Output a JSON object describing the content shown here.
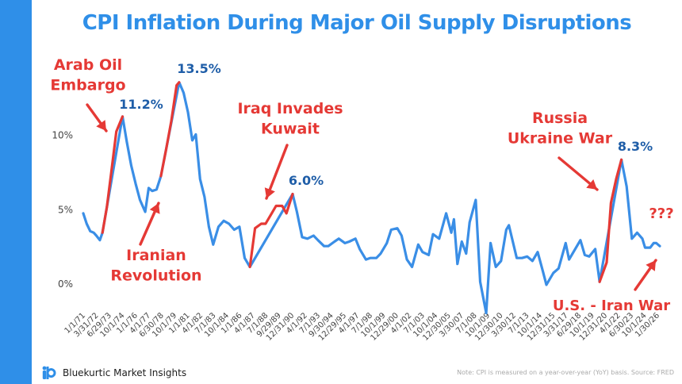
{
  "title": "CPI Inflation During Major Oil Supply Disruptions",
  "brand": {
    "name": "Bluekurtic Market Insights",
    "logo_icon": "bi-logo-icon"
  },
  "footnote": "Note: CPI is measured on a year-over-year (YoY) basis. Source: FRED",
  "colors": {
    "accent": "#2f8fe8",
    "line_blue": "#3a8ee6",
    "highlight_red": "#e53935",
    "peak_label": "#1f5ea8"
  },
  "chart_data": {
    "type": "line",
    "title": "CPI Inflation During Major Oil Supply Disruptions",
    "xlabel": "",
    "ylabel": "",
    "xlim": [
      "1971-01-01",
      "2026-01-30"
    ],
    "ylim": [
      -2.5,
      14.5
    ],
    "y_ticks": [
      {
        "value": 0,
        "label": "0%"
      },
      {
        "value": 5,
        "label": "5%"
      },
      {
        "value": 10,
        "label": "10%"
      }
    ],
    "x_tick_labels": [
      "1/1/71",
      "3/31/72",
      "6/29/73",
      "10/1/74",
      "1/1/76",
      "4/1/77",
      "6/30/78",
      "10/1/79",
      "1/1/81",
      "4/1/82",
      "7/1/83",
      "10/1/84",
      "1/1/86",
      "4/1/87",
      "7/1/88",
      "9/29/89",
      "12/31/90",
      "4/1/92",
      "7/1/93",
      "9/30/94",
      "12/29/95",
      "4/1/97",
      "7/1/98",
      "10/1/99",
      "12/29/00",
      "4/1/02",
      "7/1/03",
      "10/1/04",
      "12/30/05",
      "3/30/07",
      "7/1/08",
      "10/1/09",
      "12/30/10",
      "3/30/12",
      "7/1/13",
      "10/1/14",
      "12/31/15",
      "3/31/17",
      "6/29/18",
      "10/1/19",
      "12/31/20",
      "4/1/22",
      "6/30/23",
      "10/1/24",
      "1/30/26"
    ],
    "grid": false,
    "legend": "none",
    "series": [
      {
        "color": "#3a8ee6",
        "points": [
          [
            "1971-01-01",
            4.7
          ],
          [
            "1971-05-01",
            4.0
          ],
          [
            "1971-09-01",
            3.5
          ],
          [
            "1972-01-01",
            3.4
          ],
          [
            "1972-04-01",
            3.2
          ],
          [
            "1972-08-01",
            2.9
          ],
          [
            "1972-11-01",
            3.4
          ],
          [
            "1974-10-01",
            11.2
          ],
          [
            "1975-03-01",
            9.5
          ],
          [
            "1975-08-01",
            7.9
          ],
          [
            "1976-01-01",
            6.7
          ],
          [
            "1976-06-01",
            5.6
          ],
          [
            "1976-12-01",
            4.8
          ],
          [
            "1977-04-01",
            6.4
          ],
          [
            "1977-08-01",
            6.2
          ],
          [
            "1978-01-01",
            6.3
          ],
          [
            "1978-06-01",
            7.2
          ],
          [
            "1980-03-01",
            13.5
          ],
          [
            "1980-08-01",
            12.8
          ],
          [
            "1981-01-01",
            11.5
          ],
          [
            "1981-06-01",
            9.6
          ],
          [
            "1981-10-01",
            10.0
          ],
          [
            "1982-03-01",
            7.0
          ],
          [
            "1982-08-01",
            5.8
          ],
          [
            "1983-01-01",
            3.8
          ],
          [
            "1983-06-01",
            2.6
          ],
          [
            "1983-12-01",
            3.8
          ],
          [
            "1984-06-01",
            4.2
          ],
          [
            "1984-12-01",
            4.0
          ],
          [
            "1985-06-01",
            3.6
          ],
          [
            "1985-12-01",
            3.8
          ],
          [
            "1986-06-01",
            1.7
          ],
          [
            "1986-12-01",
            1.1
          ],
          [
            "1991-01-01",
            6.0
          ],
          [
            "1991-06-01",
            4.8
          ],
          [
            "1991-12-01",
            3.1
          ],
          [
            "1992-06-01",
            3.0
          ],
          [
            "1993-01-01",
            3.2
          ],
          [
            "1993-06-01",
            2.9
          ],
          [
            "1994-01-01",
            2.5
          ],
          [
            "1994-06-01",
            2.5
          ],
          [
            "1995-01-01",
            2.8
          ],
          [
            "1995-06-01",
            3.0
          ],
          [
            "1996-01-01",
            2.7
          ],
          [
            "1996-06-01",
            2.8
          ],
          [
            "1997-01-01",
            3.0
          ],
          [
            "1997-06-01",
            2.3
          ],
          [
            "1998-01-01",
            1.6
          ],
          [
            "1998-06-01",
            1.7
          ],
          [
            "1999-01-01",
            1.7
          ],
          [
            "1999-06-01",
            2.0
          ],
          [
            "2000-01-01",
            2.7
          ],
          [
            "2000-06-01",
            3.6
          ],
          [
            "2001-01-01",
            3.7
          ],
          [
            "2001-06-01",
            3.2
          ],
          [
            "2001-12-01",
            1.6
          ],
          [
            "2002-06-01",
            1.1
          ],
          [
            "2003-01-01",
            2.6
          ],
          [
            "2003-06-01",
            2.1
          ],
          [
            "2004-01-01",
            1.9
          ],
          [
            "2004-06-01",
            3.3
          ],
          [
            "2005-01-01",
            3.0
          ],
          [
            "2005-09-01",
            4.7
          ],
          [
            "2006-03-01",
            3.4
          ],
          [
            "2006-06-01",
            4.3
          ],
          [
            "2006-10-01",
            1.3
          ],
          [
            "2007-03-01",
            2.8
          ],
          [
            "2007-08-01",
            2.0
          ],
          [
            "2007-12-01",
            4.1
          ],
          [
            "2008-07-01",
            5.6
          ],
          [
            "2008-12-01",
            0.1
          ],
          [
            "2009-07-01",
            -2.0
          ],
          [
            "2009-12-01",
            2.7
          ],
          [
            "2010-06-01",
            1.1
          ],
          [
            "2010-12-01",
            1.5
          ],
          [
            "2011-06-01",
            3.6
          ],
          [
            "2011-09-01",
            3.9
          ],
          [
            "2012-06-01",
            1.7
          ],
          [
            "2012-12-01",
            1.7
          ],
          [
            "2013-06-01",
            1.8
          ],
          [
            "2013-12-01",
            1.5
          ],
          [
            "2014-06-01",
            2.1
          ],
          [
            "2014-12-01",
            0.8
          ],
          [
            "2015-04-01",
            -0.1
          ],
          [
            "2015-12-01",
            0.7
          ],
          [
            "2016-06-01",
            1.0
          ],
          [
            "2017-02-01",
            2.7
          ],
          [
            "2017-06-01",
            1.6
          ],
          [
            "2018-07-01",
            2.9
          ],
          [
            "2018-12-01",
            1.9
          ],
          [
            "2019-05-01",
            1.8
          ],
          [
            "2019-12-01",
            2.3
          ],
          [
            "2020-05-01",
            0.1
          ],
          [
            "2022-06-01",
            8.3
          ],
          [
            "2022-12-01",
            6.5
          ],
          [
            "2023-06-01",
            3.0
          ],
          [
            "2023-12-01",
            3.4
          ],
          [
            "2024-06-01",
            3.0
          ],
          [
            "2024-09-01",
            2.4
          ],
          [
            "2025-03-01",
            2.4
          ],
          [
            "2025-07-01",
            2.7
          ],
          [
            "2025-10-01",
            2.7
          ],
          [
            "2026-01-30",
            2.5
          ]
        ]
      },
      {
        "color": "#e53935",
        "points": [
          [
            "1972-11-01",
            3.4
          ],
          [
            "1973-04-01",
            5.1
          ],
          [
            "1973-09-01",
            7.4
          ],
          [
            "1974-03-01",
            10.2
          ],
          [
            "1974-10-01",
            11.2
          ]
        ]
      },
      {
        "color": "#e53935",
        "points": [
          [
            "1978-06-01",
            7.2
          ],
          [
            "1978-12-01",
            9.0
          ],
          [
            "1979-06-01",
            10.9
          ],
          [
            "1979-12-01",
            13.3
          ],
          [
            "1980-03-01",
            13.5
          ]
        ]
      },
      {
        "color": "#e53935",
        "points": [
          [
            "1986-12-01",
            1.1
          ],
          [
            "1987-06-01",
            3.7
          ],
          [
            "1988-01-01",
            4.0
          ],
          [
            "1988-06-01",
            4.0
          ],
          [
            "1989-01-01",
            4.7
          ],
          [
            "1989-06-01",
            5.2
          ],
          [
            "1990-01-01",
            5.2
          ],
          [
            "1990-06-01",
            4.7
          ],
          [
            "1991-01-01",
            6.0
          ]
        ]
      },
      {
        "color": "#e53935",
        "points": [
          [
            "2020-05-01",
            0.1
          ],
          [
            "2021-01-01",
            1.4
          ],
          [
            "2021-06-01",
            5.4
          ],
          [
            "2021-12-01",
            7.0
          ],
          [
            "2022-06-01",
            8.3
          ]
        ]
      }
    ],
    "annotations": [
      {
        "text_lines": [
          "Arab Oil",
          "Embargo"
        ],
        "color": "#e53935",
        "size": 19,
        "bold": true,
        "anchor": "middle"
      },
      {
        "text_lines": [
          "Iranian",
          "Revolution"
        ],
        "color": "#e53935",
        "size": 19,
        "bold": true,
        "anchor": "middle"
      },
      {
        "text_lines": [
          "Iraq Invades",
          "Kuwait"
        ],
        "color": "#e53935",
        "size": 19,
        "bold": true,
        "anchor": "middle"
      },
      {
        "text_lines": [
          "Russia",
          "Ukraine War"
        ],
        "color": "#e53935",
        "size": 19,
        "bold": true,
        "anchor": "middle"
      },
      {
        "text_lines": [
          "???"
        ],
        "color": "#e53935",
        "size": 18,
        "bold": true,
        "anchor": "middle"
      },
      {
        "text_lines": [
          "U.S. - Iran War"
        ],
        "color": "#e53935",
        "size": 18,
        "bold": true,
        "anchor": "middle"
      },
      {
        "text_lines": [
          "11.2%"
        ],
        "color": "#1f5ea8",
        "size": 16,
        "bold": true,
        "anchor": "middle"
      },
      {
        "text_lines": [
          "13.5%"
        ],
        "color": "#1f5ea8",
        "size": 16,
        "bold": true,
        "anchor": "middle"
      },
      {
        "text_lines": [
          "6.0%"
        ],
        "color": "#1f5ea8",
        "size": 16,
        "bold": true,
        "anchor": "middle"
      },
      {
        "text_lines": [
          "8.3%"
        ],
        "color": "#1f5ea8",
        "size": 16,
        "bold": true,
        "anchor": "middle"
      }
    ]
  }
}
